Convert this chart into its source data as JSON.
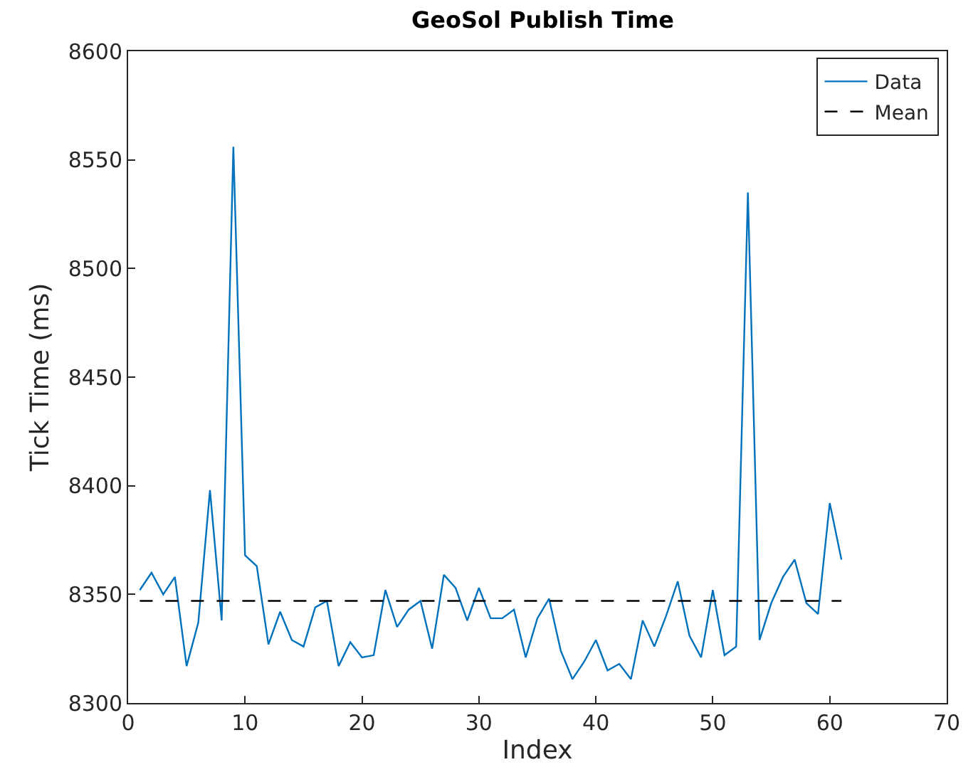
{
  "chart_data": {
    "type": "line",
    "title": "GeoSol Publish Time",
    "xlabel": "Index",
    "ylabel": "Tick Time (ms)",
    "xlim": [
      0,
      70
    ],
    "xticks": [
      0,
      10,
      20,
      30,
      40,
      50,
      60,
      70
    ],
    "ylim": [
      8300,
      8600
    ],
    "yticks": [
      8300,
      8350,
      8400,
      8450,
      8500,
      8550,
      8600
    ],
    "grid": false,
    "legend": "top right",
    "marker": "none",
    "series": [
      {
        "name": "Data",
        "color": "#0072bd",
        "line_style": "solid",
        "x": [
          1,
          2,
          3,
          4,
          5,
          6,
          7,
          8,
          9,
          10,
          11,
          12,
          13,
          14,
          15,
          16,
          17,
          18,
          19,
          20,
          21,
          22,
          23,
          24,
          25,
          26,
          27,
          28,
          29,
          30,
          31,
          32,
          33,
          34,
          35,
          36,
          37,
          38,
          39,
          40,
          41,
          42,
          43,
          44,
          45,
          46,
          47,
          48,
          49,
          50,
          51,
          52,
          53,
          54,
          55,
          56,
          57,
          58,
          59,
          60,
          61
        ],
        "values": [
          8352,
          8360,
          8350,
          8358,
          8317,
          8337,
          8398,
          8338,
          8556,
          8368,
          8363,
          8327,
          8342,
          8329,
          8326,
          8344,
          8347,
          8317,
          8328,
          8321,
          8322,
          8352,
          8335,
          8343,
          8347,
          8325,
          8359,
          8353,
          8338,
          8353,
          8339,
          8339,
          8343,
          8321,
          8339,
          8348,
          8324,
          8311,
          8319,
          8329,
          8315,
          8318,
          8311,
          8338,
          8326,
          8340,
          8356,
          8331,
          8321,
          8352,
          8322,
          8326,
          8535,
          8329,
          8346,
          8358,
          8366,
          8346,
          8341,
          8392,
          8366
        ]
      },
      {
        "name": "Mean",
        "color": "#000000",
        "line_style": "dashed",
        "x": [
          1,
          61
        ],
        "values": [
          8347,
          8347
        ]
      }
    ]
  }
}
